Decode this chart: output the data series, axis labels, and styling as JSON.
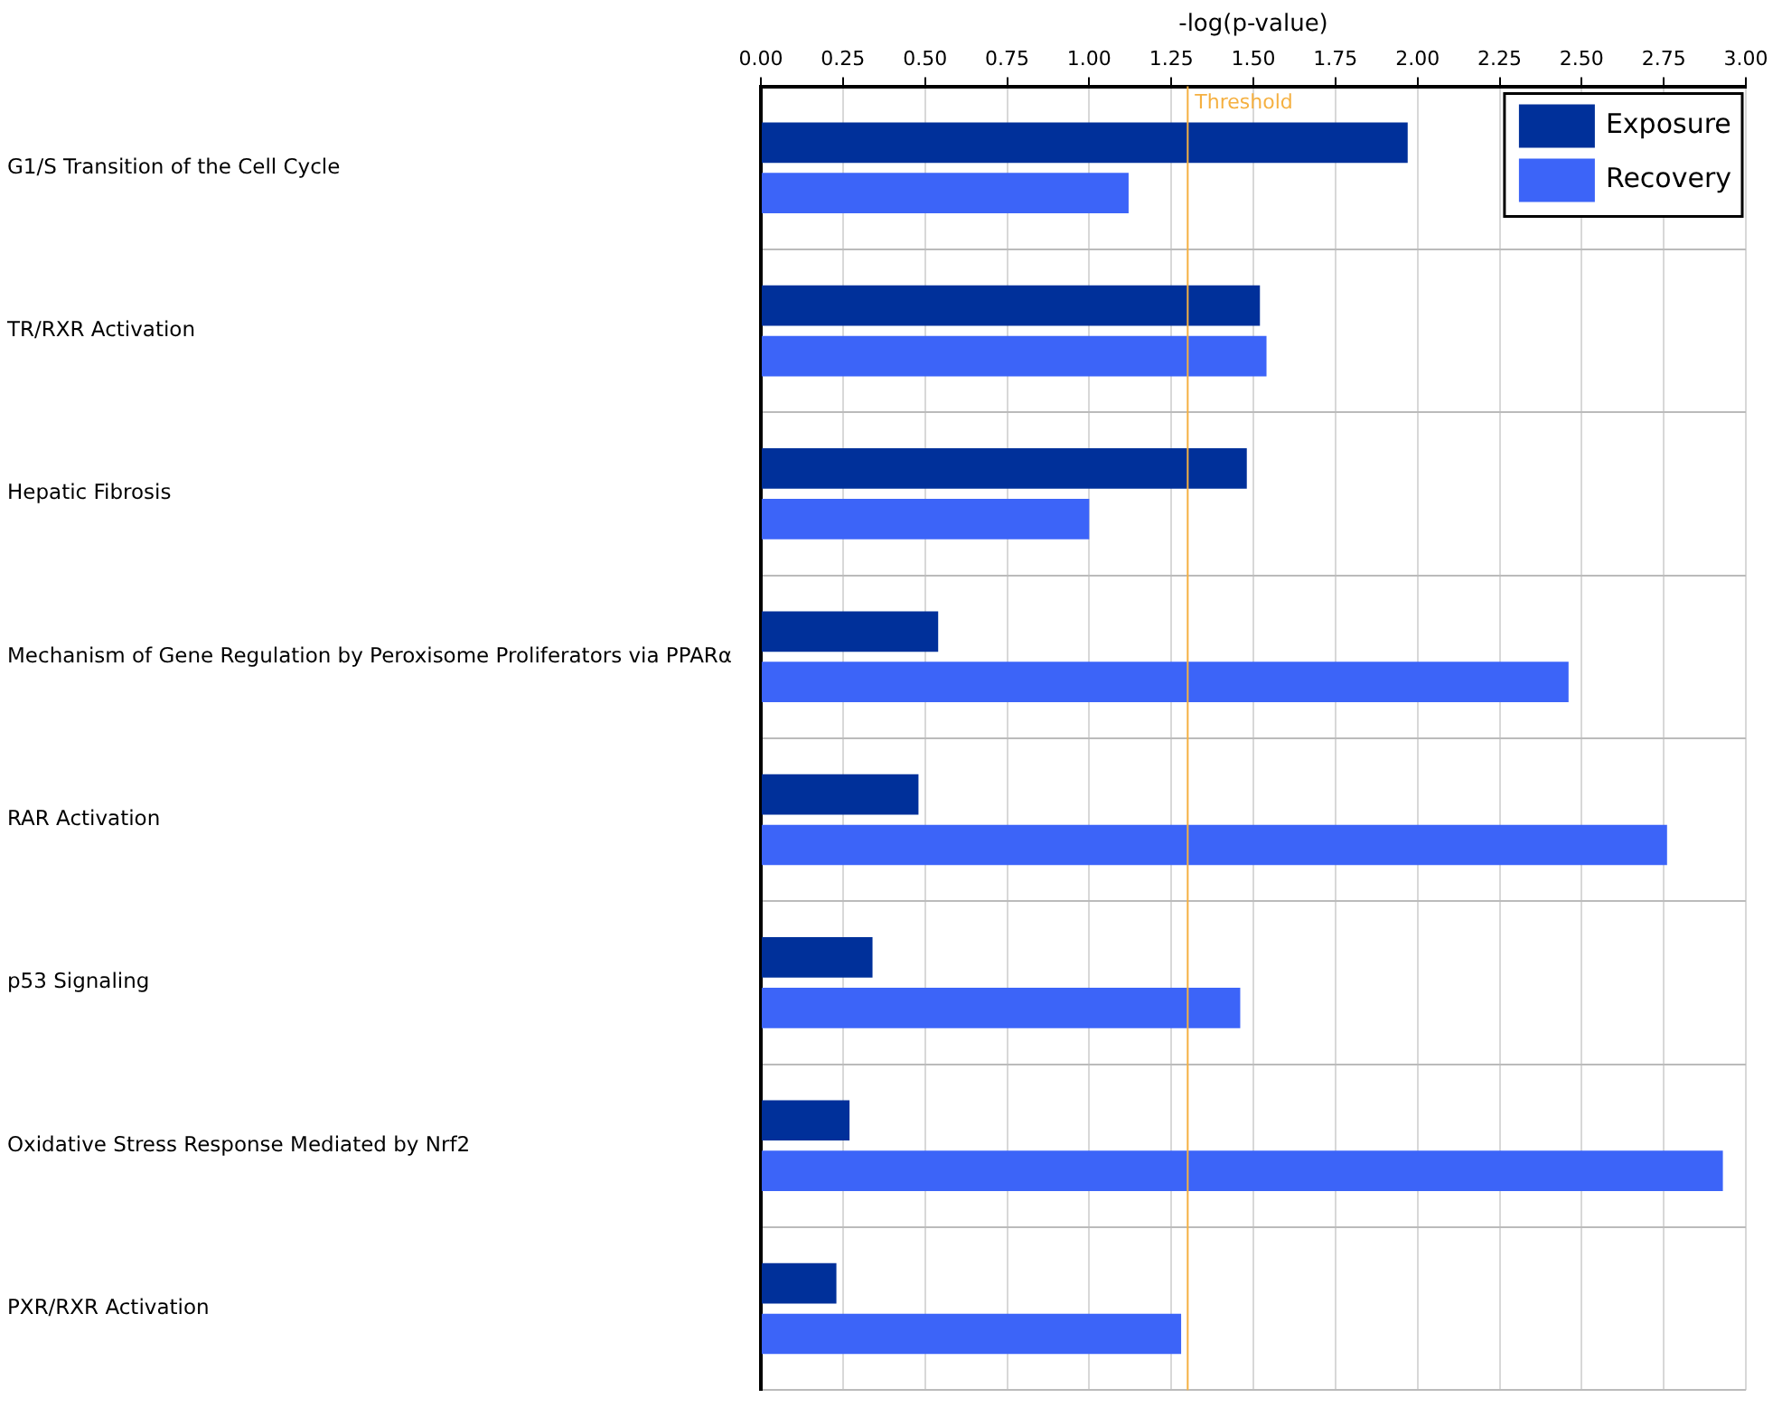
{
  "chart_data": {
    "type": "bar",
    "orientation": "horizontal",
    "xlabel": "-log(p-value)",
    "categories": [
      "G1/S Transition of the Cell Cycle",
      "TR/RXR Activation",
      "Hepatic Fibrosis",
      "Mechanism of Gene Regulation by Peroxisome Proliferators via PPARα",
      "RAR Activation",
      "p53 Signaling",
      "Oxidative Stress Response Mediated by Nrf2",
      "PXR/RXR Activation"
    ],
    "series": [
      {
        "name": "Exposure",
        "color": "#00309a",
        "values": [
          1.97,
          1.52,
          1.48,
          0.54,
          0.48,
          0.34,
          0.27,
          0.23
        ]
      },
      {
        "name": "Recovery",
        "color": "#3c64f8",
        "values": [
          1.12,
          1.54,
          1.0,
          2.46,
          2.76,
          1.46,
          2.93,
          1.28
        ]
      }
    ],
    "xlim": [
      0,
      3
    ],
    "xticks": [
      {
        "value": 0,
        "label": "0.00"
      },
      {
        "value": 0.25,
        "label": "0.25"
      },
      {
        "value": 0.5,
        "label": "0.50"
      },
      {
        "value": 0.75,
        "label": "0.75"
      },
      {
        "value": 1,
        "label": "1.00"
      },
      {
        "value": 1.25,
        "label": "1.25"
      },
      {
        "value": 1.5,
        "label": "1.50"
      },
      {
        "value": 1.75,
        "label": "1.75"
      },
      {
        "value": 2,
        "label": "2.00"
      },
      {
        "value": 2.25,
        "label": "2.25"
      },
      {
        "value": 2.5,
        "label": "2.50"
      },
      {
        "value": 2.75,
        "label": "2.75"
      },
      {
        "value": 3,
        "label": "3.00"
      }
    ],
    "ref_lines": [
      {
        "axis": "x",
        "value": 1.3,
        "label": "Threshold",
        "color": "#f5b041"
      }
    ],
    "grid": true,
    "legend": "top right"
  }
}
